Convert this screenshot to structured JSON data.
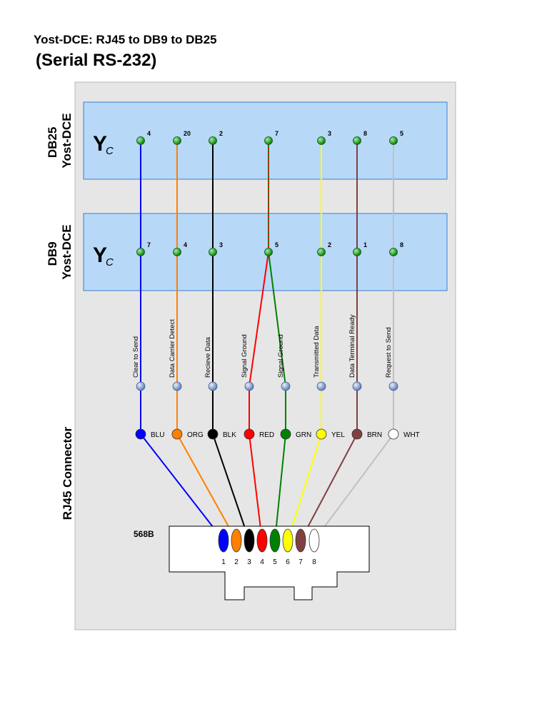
{
  "title": "Yost-DCE: RJ45 to DB9 to DB25",
  "subtitle": "(Serial RS-232)",
  "db25": {
    "label_line1": "DB25",
    "label_line2": "Yost-DCE",
    "logo": "Y",
    "logo_sub": "C",
    "pins": [
      "4",
      "20",
      "2",
      "7",
      "3",
      "8",
      "5"
    ]
  },
  "db9": {
    "label_line1": "DB9",
    "label_line2": "Yost-DCE",
    "logo": "Y",
    "logo_sub": "C",
    "pins": [
      "7",
      "4",
      "3",
      "5",
      "2",
      "1",
      "8"
    ]
  },
  "rj45": {
    "section_label": "RJ45 Connector",
    "standard": "568B",
    "pin_numbers": [
      "1",
      "2",
      "3",
      "4",
      "5",
      "6",
      "7",
      "8"
    ]
  },
  "wires": [
    {
      "signal": "Clear to Send",
      "color_label": "BLU",
      "color": "#0000ff"
    },
    {
      "signal": "Data Carrier Detect",
      "color_label": "ORG",
      "color": "#ff8000"
    },
    {
      "signal": "Recieve Data",
      "color_label": "BLK",
      "color": "#000000"
    },
    {
      "signal": "Signal Ground",
      "color_label": "RED",
      "color": "#ff0000"
    },
    {
      "signal": "Signal Ground",
      "color_label": "GRN",
      "color": "#008000"
    },
    {
      "signal": "Transmitted Data",
      "color_label": "YEL",
      "color": "#ffff00"
    },
    {
      "signal": "Data Terminal Ready",
      "color_label": "BRN",
      "color": "#804040"
    },
    {
      "signal": "Request to Send",
      "color_label": "WHT",
      "color": "#ffffff"
    }
  ],
  "colors": {
    "panel_bg": "#e6e6e6",
    "connector_bg": "#b8d8f8",
    "connector_border": "#3a7fd0",
    "pin_green": "#1e9b1e",
    "junction_blue": "#7f9fd0",
    "db_wire_white": "#c0c0c0"
  }
}
